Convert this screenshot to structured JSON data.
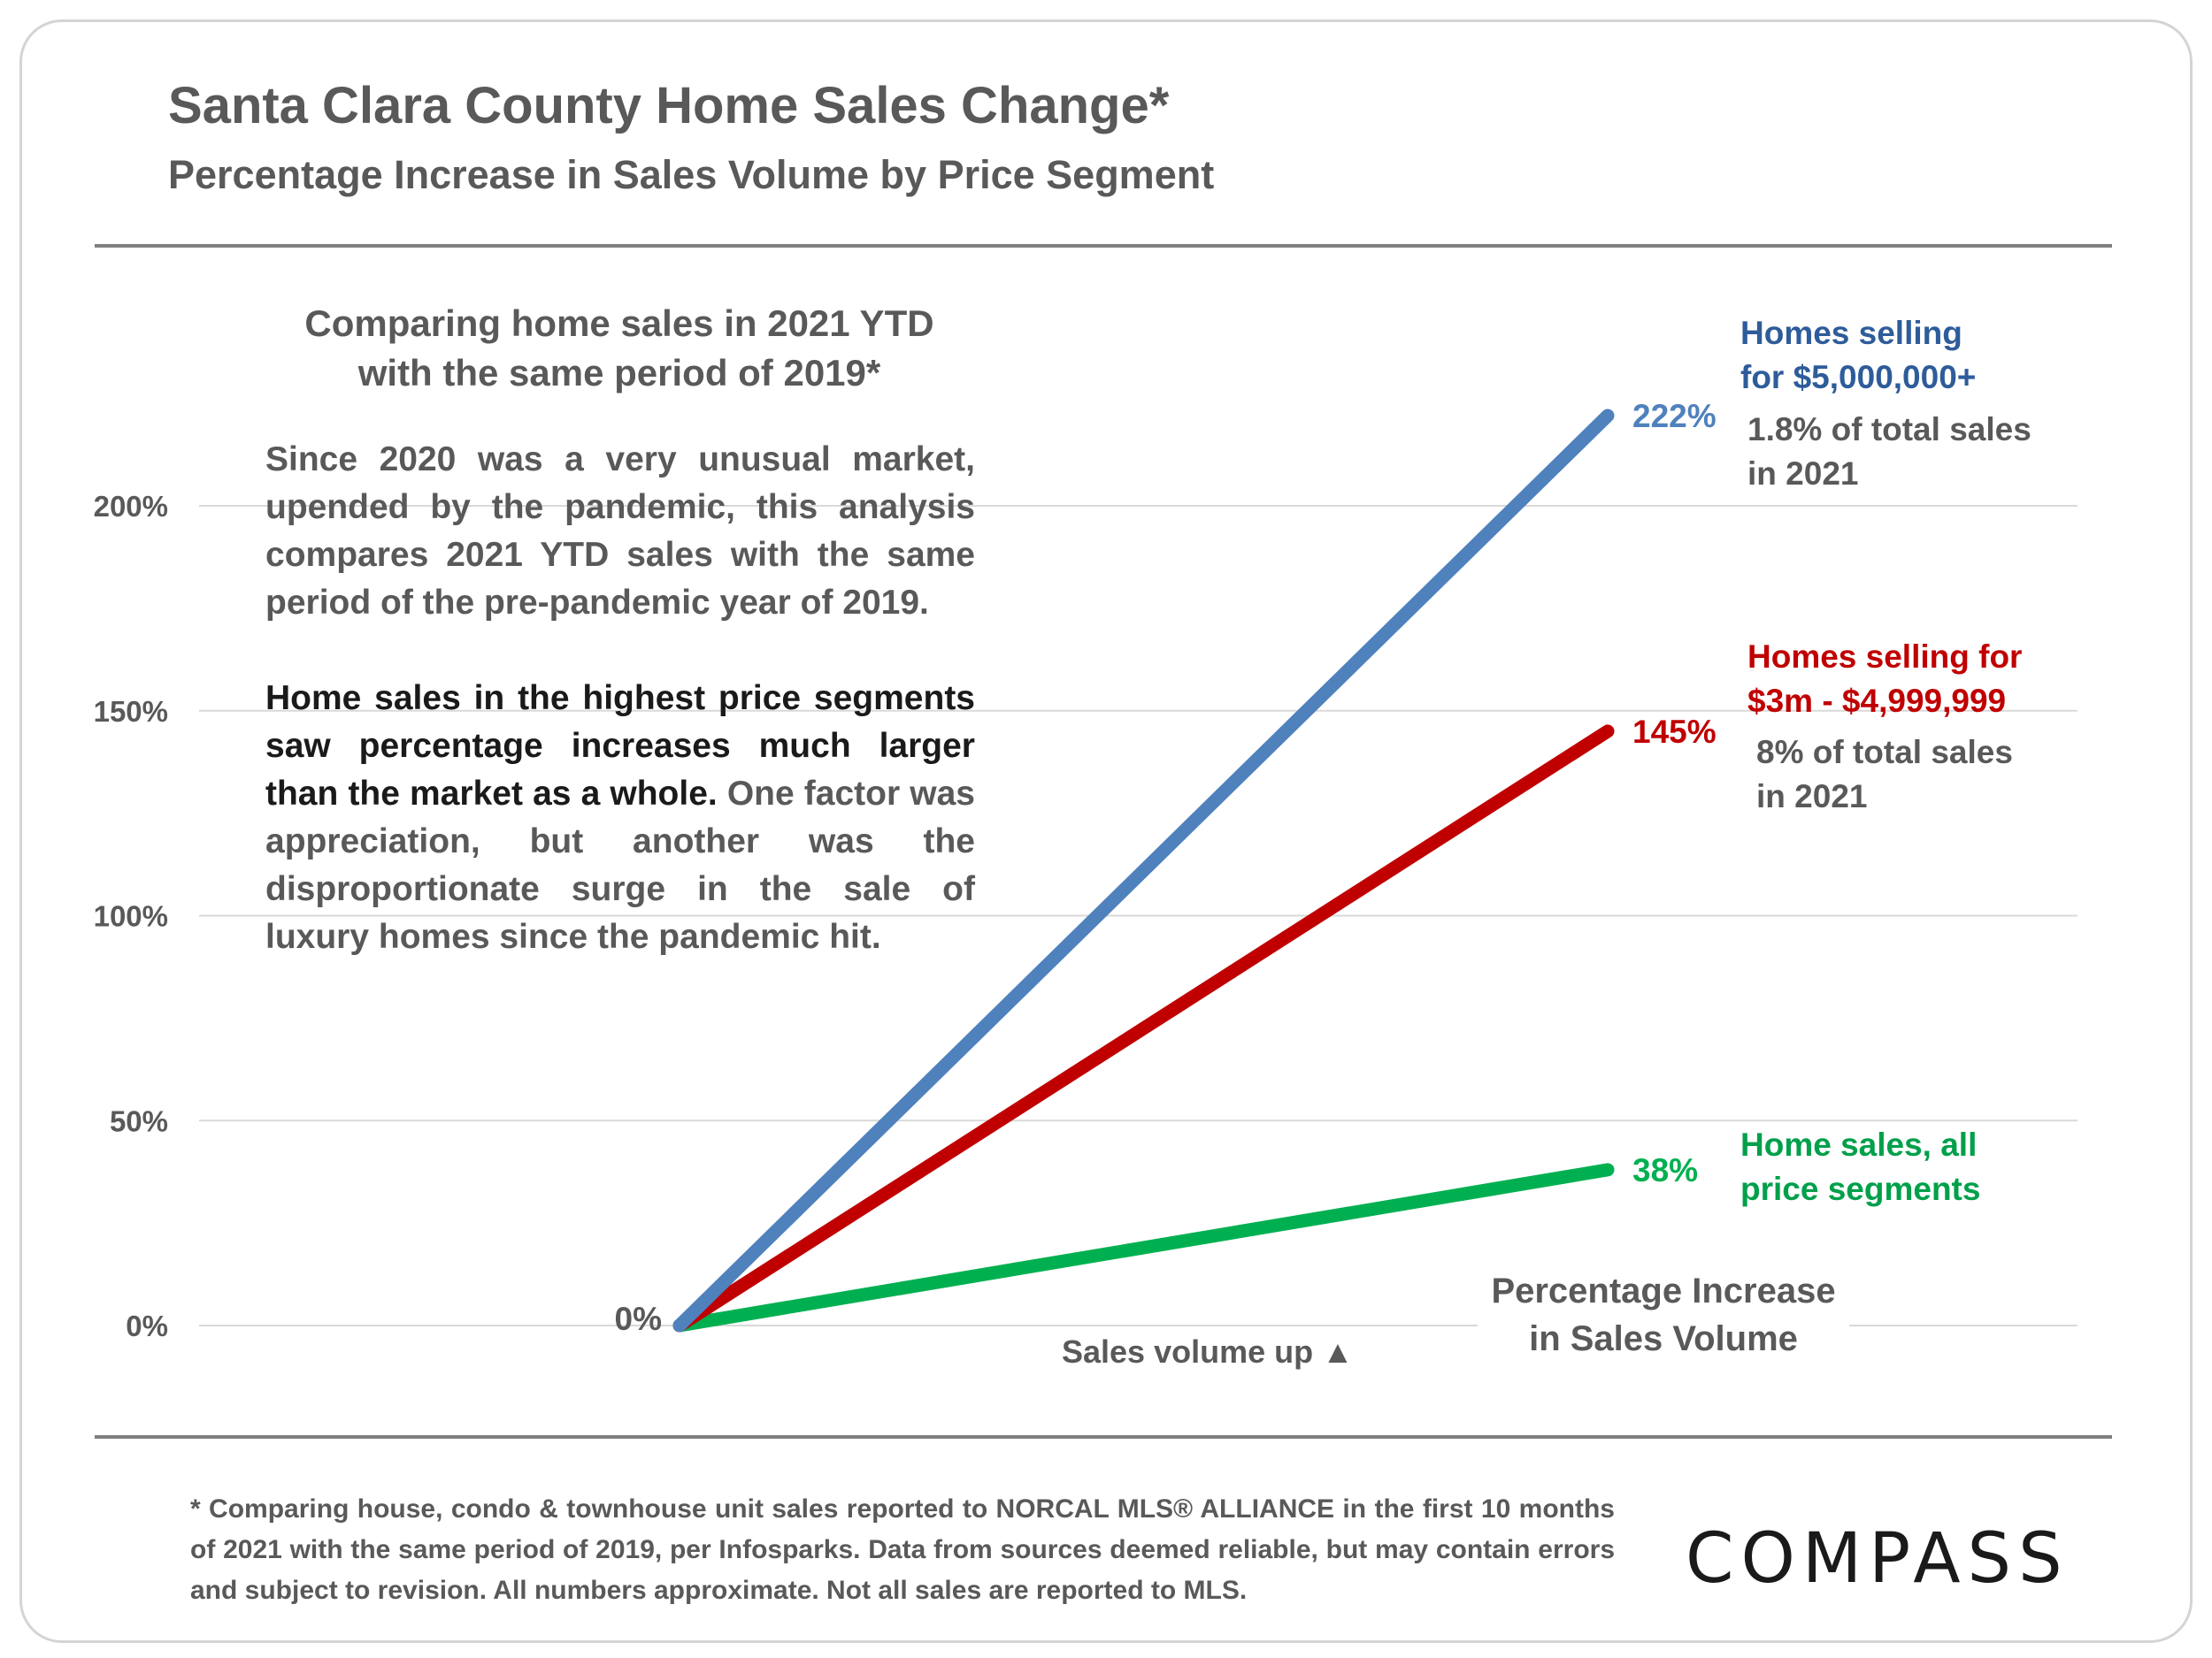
{
  "header": {
    "title": "Santa Clara County Home Sales Change*",
    "subtitle": "Percentage Increase in Sales Volume by Price Segment"
  },
  "textbox": {
    "heading_line1": "Comparing home sales in 2021 YTD",
    "heading_line2": "with the same period of 2019*",
    "para1": "Since 2020 was a very unusual market, upended by the pandemic, this analysis compares 2021 YTD sales with the same period of the pre-pandemic year of 2019.",
    "para2_bold": "Home sales in the highest price segments saw percentage increases much larger than the market as a whole.",
    "para2_rest": " One factor was appreciation, but another was the disproportionate surge in the sale of luxury homes since the pandemic hit."
  },
  "annotations": {
    "lux5_line1": "Homes selling",
    "lux5_line2": "for $5,000,000+",
    "lux5_share1": "1.8% of total sales",
    "lux5_share2": "in 2021",
    "lux3_line1": "Homes selling for",
    "lux3_line2": "$3m - $4,999,999",
    "lux3_share1": "8% of total sales",
    "lux3_share2": "in 2021",
    "all_line1": "Home sales, all",
    "all_line2": "price segments",
    "axis_title_line1": "Percentage Increase",
    "axis_title_line2": "in Sales Volume",
    "volume_up": "Sales volume up ▲"
  },
  "footnote": "* Comparing house, condo & townhouse unit sales reported to NORCAL MLS® ALLIANCE in the first 10 months of 2021 with the same period of 2019, per Infosparks. Data from sources deemed reliable, but may contain errors and subject to revision. All numbers approximate. Not all sales are reported to MLS.",
  "logo": "COMPASS",
  "colors": {
    "blue": "#4F81BD",
    "red": "#C00000",
    "green": "#00B050",
    "gray": "#595959"
  },
  "chart_data": {
    "type": "line",
    "x": [
      "2019",
      "2021"
    ],
    "ylim": [
      0,
      200
    ],
    "yticks": [
      "0%",
      "50%",
      "100%",
      "150%",
      "200%"
    ],
    "grid": true,
    "start_label": "0%",
    "series": [
      {
        "values": [
          0,
          222
        ],
        "label": "222%",
        "color": "#4F81BD"
      },
      {
        "values": [
          0,
          145
        ],
        "label": "145%",
        "color": "#C00000"
      },
      {
        "values": [
          0,
          38
        ],
        "label": "38%",
        "color": "#00B050"
      }
    ]
  }
}
